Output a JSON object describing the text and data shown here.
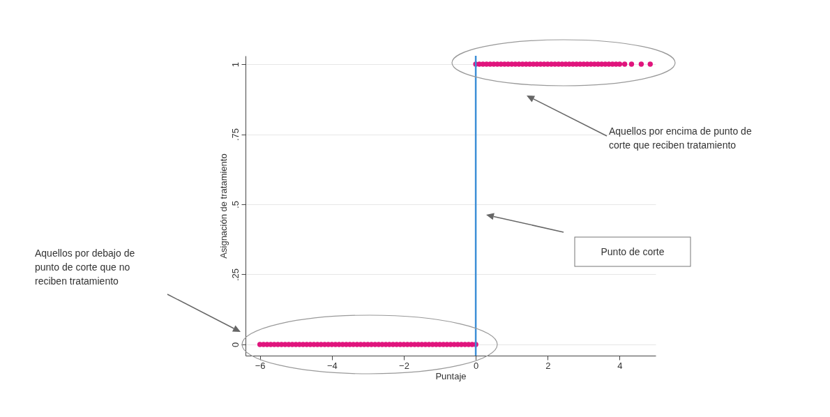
{
  "chart_data": {
    "type": "scatter",
    "xlabel": "Puntaje",
    "ylabel": "Asignación de tratamiento",
    "xlim": [
      -6.4,
      5.0
    ],
    "ylim": [
      -0.04,
      1.03
    ],
    "xticks": [
      -6,
      -4,
      -2,
      0,
      2,
      4
    ],
    "yticks": [
      {
        "value": 0,
        "label": "0"
      },
      {
        "value": 0.25,
        "label": ".25"
      },
      {
        "value": 0.5,
        "label": ".5"
      },
      {
        "value": 0.75,
        "label": ".75"
      },
      {
        "value": 1,
        "label": "1"
      }
    ],
    "grid": "y",
    "marker": "circle",
    "series": [
      {
        "color": "#e0157d",
        "x": [
          -6,
          -5.9,
          -5.8,
          -5.7,
          -5.6,
          -5.5,
          -5.4,
          -5.3,
          -5.2,
          -5.1,
          -5,
          -4.9,
          -4.8,
          -4.7,
          -4.6,
          -4.5,
          -4.4,
          -4.3,
          -4.2,
          -4.1,
          -4,
          -3.9,
          -3.8,
          -3.7,
          -3.6,
          -3.5,
          -3.4,
          -3.3,
          -3.2,
          -3.1,
          -3,
          -2.9,
          -2.8,
          -2.7,
          -2.6,
          -2.5,
          -2.4,
          -2.3,
          -2.2,
          -2.1,
          -2,
          -1.9,
          -1.8,
          -1.7,
          -1.6,
          -1.5,
          -1.4,
          -1.3,
          -1.2,
          -1.1,
          -1,
          -0.9,
          -0.8,
          -0.7,
          -0.6,
          -0.5,
          -0.4,
          -0.3,
          -0.2,
          -0.1,
          0,
          0,
          0.1,
          0.2,
          0.3,
          0.4,
          0.5,
          0.6,
          0.7,
          0.8,
          0.9,
          1,
          1.1,
          1.2,
          1.3,
          1.4,
          1.5,
          1.6,
          1.7,
          1.8,
          1.9,
          2,
          2.1,
          2.2,
          2.3,
          2.4,
          2.5,
          2.6,
          2.7,
          2.8,
          2.9,
          3,
          3.1,
          3.2,
          3.3,
          3.4,
          3.5,
          3.6,
          3.7,
          3.8,
          3.9,
          4,
          4.14,
          4.33,
          4.6,
          4.85
        ],
        "values": [
          0,
          0,
          0,
          0,
          0,
          0,
          0,
          0,
          0,
          0,
          0,
          0,
          0,
          0,
          0,
          0,
          0,
          0,
          0,
          0,
          0,
          0,
          0,
          0,
          0,
          0,
          0,
          0,
          0,
          0,
          0,
          0,
          0,
          0,
          0,
          0,
          0,
          0,
          0,
          0,
          0,
          0,
          0,
          0,
          0,
          0,
          0,
          0,
          0,
          0,
          0,
          0,
          0,
          0,
          0,
          0,
          0,
          0,
          0,
          0,
          0,
          1,
          1,
          1,
          1,
          1,
          1,
          1,
          1,
          1,
          1,
          1,
          1,
          1,
          1,
          1,
          1,
          1,
          1,
          1,
          1,
          1,
          1,
          1,
          1,
          1,
          1,
          1,
          1,
          1,
          1,
          1,
          1,
          1,
          1,
          1,
          1,
          1,
          1,
          1,
          1,
          1,
          1,
          1,
          1,
          1
        ]
      }
    ],
    "ref_lines": [
      {
        "axis": "x",
        "value": 0,
        "color": "#3d8fd6"
      }
    ],
    "annotations": [
      "Aquellos por encima de punto de corte que reciben tratamiento",
      "Punto de corte",
      "Aquellos por debajo de punto de corte que no reciben tratamiento"
    ]
  }
}
